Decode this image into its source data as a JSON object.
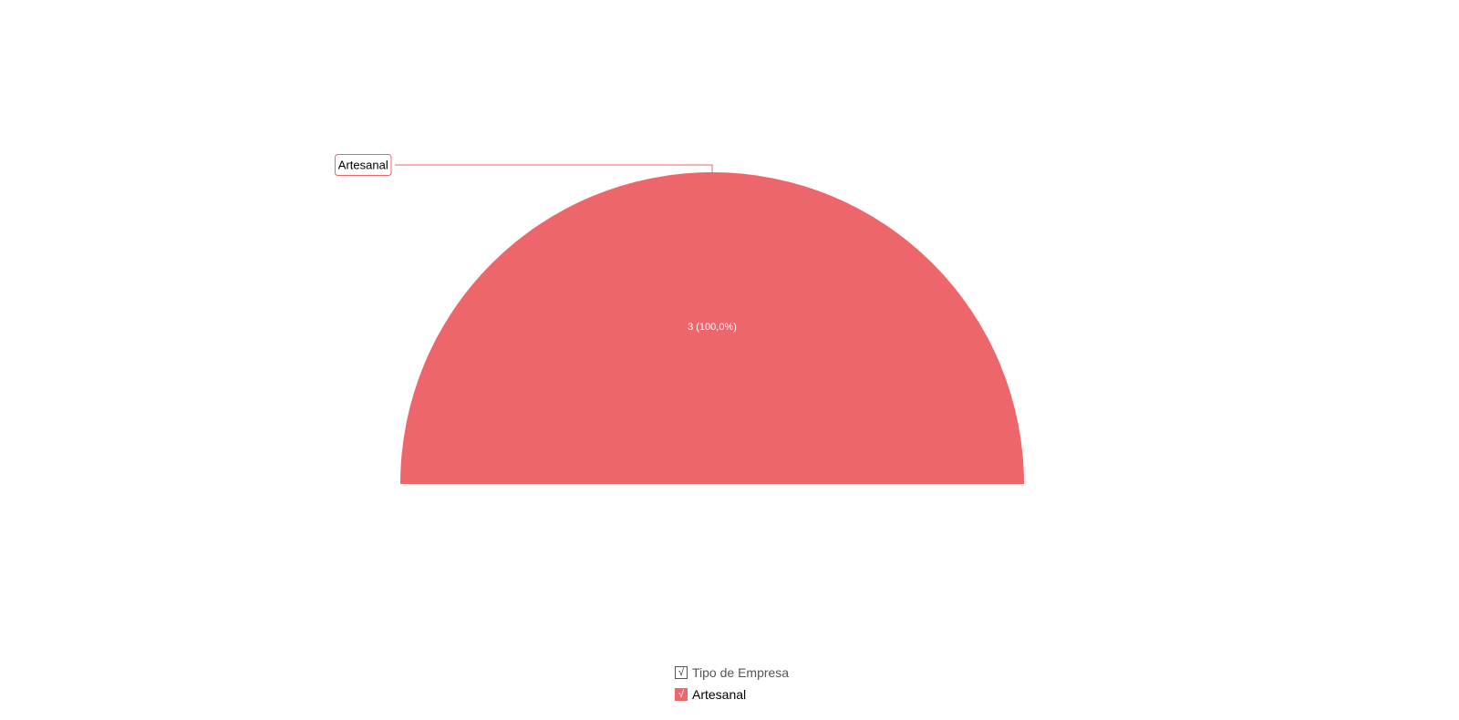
{
  "chart_data": {
    "type": "pie",
    "subtype": "semi-circle",
    "series": [
      {
        "name": "Artesanal",
        "values": [
          3
        ],
        "percent": [
          100.0
        ],
        "color": "#EC666C"
      }
    ],
    "categories": [
      "Artesanal"
    ],
    "slice_label": "3 (100,0%)",
    "callout_label": "Artesanal",
    "legend_title": "Tipo de Empresa",
    "legend_placement": "bottom-center",
    "legend_checked": true
  },
  "legend": {
    "title": "Tipo de Empresa",
    "check_glyph": "√",
    "items": [
      {
        "label": "Artesanal",
        "color": "#EC666C",
        "checked": true
      }
    ]
  }
}
